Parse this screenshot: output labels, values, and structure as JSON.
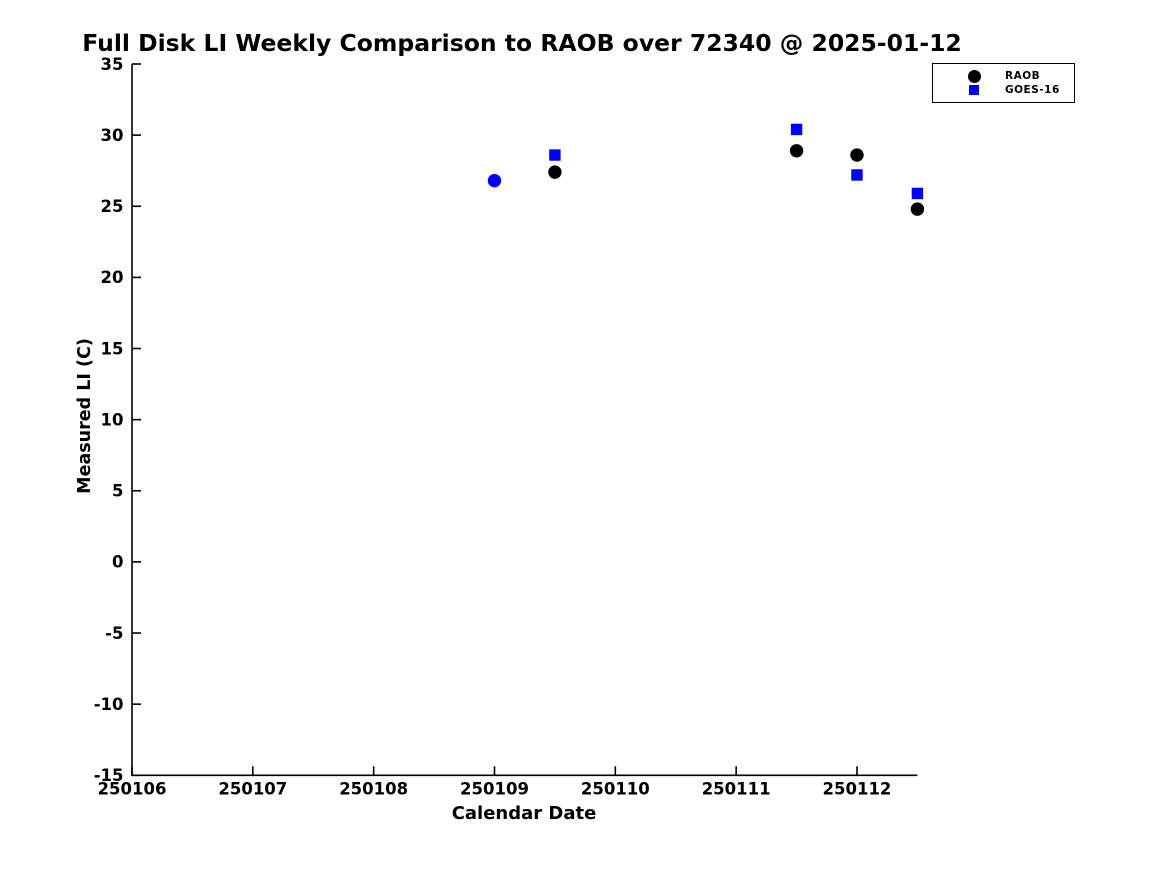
{
  "chart_data": {
    "type": "scatter",
    "title": "Full Disk LI Weekly Comparison to RAOB over 72340 @ 2025-01-12",
    "xlabel": "Calendar Date",
    "ylabel": "Measured LI (C)",
    "xlim": [
      250106,
      250112.5
    ],
    "ylim": [
      -15,
      35
    ],
    "x_ticks": [
      "250106",
      "250107",
      "250108",
      "250109",
      "250110",
      "250111",
      "250112"
    ],
    "y_ticks": [
      "35",
      "30",
      "25",
      "20",
      "15",
      "10",
      "5",
      "0",
      "-5",
      "-10",
      "-15"
    ],
    "grid": false,
    "background_color": "#ffffff",
    "axis_color": "#000000",
    "legend": {
      "position": "upper-right",
      "entries": [
        {
          "label": "RAOB",
          "marker": "circle",
          "color": "#000000"
        },
        {
          "label": "GOES-16",
          "marker": "square",
          "color": "#0000ff"
        }
      ]
    },
    "series": [
      {
        "name": "RAOB",
        "marker": "circle",
        "color": "#000000",
        "points": [
          {
            "x": 250109.5,
            "y": 27.4
          },
          {
            "x": 250111.5,
            "y": 28.9
          },
          {
            "x": 250112.0,
            "y": 28.6
          },
          {
            "x": 250112.5,
            "y": 24.8
          }
        ]
      },
      {
        "name": "GOES-16",
        "marker": "square",
        "color": "#0000ff",
        "points": [
          {
            "x": 250109.0,
            "y": 26.8,
            "marker": "circle"
          },
          {
            "x": 250109.5,
            "y": 28.6
          },
          {
            "x": 250111.5,
            "y": 30.4
          },
          {
            "x": 250112.0,
            "y": 27.2
          },
          {
            "x": 250112.5,
            "y": 25.9
          }
        ]
      }
    ]
  }
}
